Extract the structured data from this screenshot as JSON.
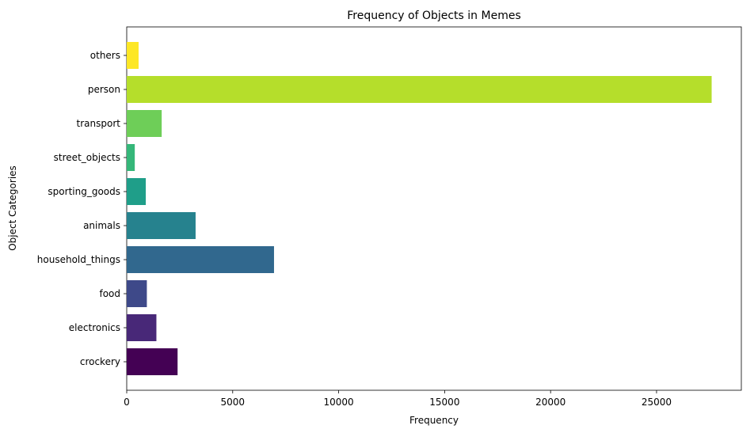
{
  "chart_data": {
    "type": "bar",
    "orientation": "horizontal",
    "title": "Frequency of Objects in Memes",
    "xlabel": "Frequency",
    "ylabel": "Object Categories",
    "categories": [
      "crockery",
      "electronics",
      "food",
      "household_things",
      "animals",
      "sporting_goods",
      "street_objects",
      "transport",
      "person",
      "others"
    ],
    "values": [
      2400,
      1400,
      950,
      6950,
      3250,
      900,
      380,
      1650,
      27600,
      560
    ],
    "colors": [
      "#440154",
      "#482878",
      "#3e4989",
      "#31688e",
      "#26828e",
      "#1f9e89",
      "#35b779",
      "#6ece58",
      "#b5de2b",
      "#fde725"
    ],
    "xlim": [
      0,
      29000
    ],
    "xticks": [
      0,
      5000,
      10000,
      15000,
      20000,
      25000
    ],
    "grid": false,
    "legend": "none"
  }
}
